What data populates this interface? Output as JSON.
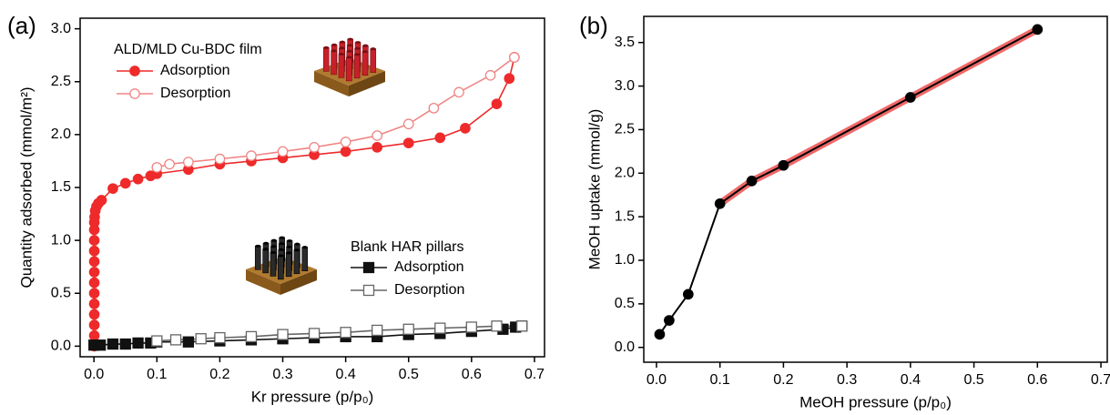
{
  "chart_data": [
    {
      "type": "line",
      "panel_label": "(a)",
      "x_label": "Kr pressure (p/p₀)",
      "y_label": "Quantity adsorbed (mmol/m²)",
      "xlim": [
        -0.022,
        0.716
      ],
      "ylim": [
        -0.1,
        3.1
      ],
      "xticks": [
        {
          "value": 0,
          "label": "0.0"
        },
        0.1,
        0.2,
        0.3,
        0.4,
        0.5,
        0.6,
        0.7
      ],
      "yticks": [
        {
          "value": 0,
          "label": "0.0"
        },
        0.5,
        {
          "value": 1,
          "label": "1.0"
        },
        1.5,
        {
          "value": 2,
          "label": "2.0"
        },
        2.5,
        {
          "value": 3,
          "label": "3.0"
        }
      ],
      "series_groups": [
        {
          "title": "ALD/MLD Cu-BDC film",
          "series": [
            {
              "name": "Adsorption",
              "color": "#ee2a2a",
              "marker": "circle",
              "filled": true,
              "x": [
                0.0005,
                0.0005,
                0.0005,
                0.0005,
                0.0005,
                0.0005,
                0.0005,
                0.0005,
                0.0005,
                0.0005,
                0.0005,
                0.0005,
                0.0005,
                0.001,
                0.002,
                0.004,
                0.007,
                0.012,
                0.03,
                0.05,
                0.07,
                0.09,
                0.1,
                0.15,
                0.2,
                0.25,
                0.3,
                0.35,
                0.4,
                0.45,
                0.5,
                0.55,
                0.59,
                0.64,
                0.66,
                0.668
              ],
              "values": [
                0,
                0.1,
                0.2,
                0.3,
                0.4,
                0.5,
                0.6,
                0.7,
                0.8,
                0.9,
                1.0,
                1.1,
                1.17,
                1.22,
                1.28,
                1.32,
                1.35,
                1.38,
                1.49,
                1.54,
                1.58,
                1.61,
                1.63,
                1.67,
                1.72,
                1.75,
                1.78,
                1.81,
                1.84,
                1.88,
                1.92,
                1.97,
                2.06,
                2.29,
                2.53,
                2.73
              ]
            },
            {
              "name": "Desorption",
              "color": "#f08585",
              "marker": "circle",
              "filled": false,
              "x": [
                0.668,
                0.63,
                0.58,
                0.54,
                0.5,
                0.45,
                0.4,
                0.35,
                0.3,
                0.25,
                0.2,
                0.15,
                0.12,
                0.1
              ],
              "values": [
                2.73,
                2.56,
                2.4,
                2.25,
                2.1,
                1.99,
                1.93,
                1.88,
                1.84,
                1.8,
                1.77,
                1.74,
                1.72,
                1.69
              ]
            }
          ]
        },
        {
          "title": "Blank HAR pillars",
          "series": [
            {
              "name": "Adsorption",
              "color": "#111111",
              "marker": "square",
              "filled": true,
              "x": [
                0,
                0.01,
                0.03,
                0.05,
                0.07,
                0.09,
                0.1,
                0.15,
                0.2,
                0.25,
                0.3,
                0.35,
                0.4,
                0.45,
                0.5,
                0.55,
                0.6,
                0.65,
                0.67,
                0.68
              ],
              "values": [
                0.01,
                0.01,
                0.02,
                0.02,
                0.03,
                0.03,
                0.04,
                0.04,
                0.05,
                0.06,
                0.07,
                0.08,
                0.09,
                0.09,
                0.11,
                0.12,
                0.14,
                0.16,
                0.18,
                0.19
              ]
            },
            {
              "name": "Desorption",
              "color": "#666666",
              "marker": "square",
              "filled": false,
              "x": [
                0.68,
                0.64,
                0.6,
                0.55,
                0.5,
                0.45,
                0.4,
                0.35,
                0.3,
                0.25,
                0.2,
                0.17,
                0.13,
                0.1
              ],
              "values": [
                0.19,
                0.19,
                0.18,
                0.17,
                0.16,
                0.15,
                0.13,
                0.12,
                0.11,
                0.09,
                0.08,
                0.07,
                0.06,
                0.05
              ]
            }
          ]
        }
      ]
    },
    {
      "type": "line",
      "panel_label": "(b)",
      "x_label": "MeOH pressure (p/p₀)",
      "y_label": "MeOH uptake (mmol/g)",
      "xlim": [
        -0.02,
        0.71
      ],
      "ylim": [
        -0.17,
        3.8
      ],
      "xticks": [
        {
          "value": 0,
          "label": "0.0"
        },
        0.1,
        0.2,
        0.3,
        0.4,
        0.5,
        0.6,
        0.7
      ],
      "yticks": [
        {
          "value": 0,
          "label": "0.0"
        },
        0.5,
        {
          "value": 1,
          "label": "1.0"
        },
        1.5,
        {
          "value": 2,
          "label": "2.0"
        },
        2.5,
        {
          "value": 3,
          "label": "3.0"
        },
        3.5
      ],
      "x": [
        0.005,
        0.02,
        0.05,
        0.1,
        0.15,
        0.2,
        0.4,
        0.6
      ],
      "series": [
        {
          "color": "#f06868",
          "marker": "none",
          "width": 8,
          "values": [
            null,
            null,
            null,
            1.65,
            1.91,
            2.09,
            2.87,
            3.65
          ]
        },
        {
          "color": "#000000",
          "marker": "circle",
          "filled": true,
          "width": 2,
          "values": [
            0.15,
            0.31,
            0.61,
            1.65,
            1.91,
            2.09,
            2.87,
            3.65
          ]
        }
      ]
    }
  ]
}
